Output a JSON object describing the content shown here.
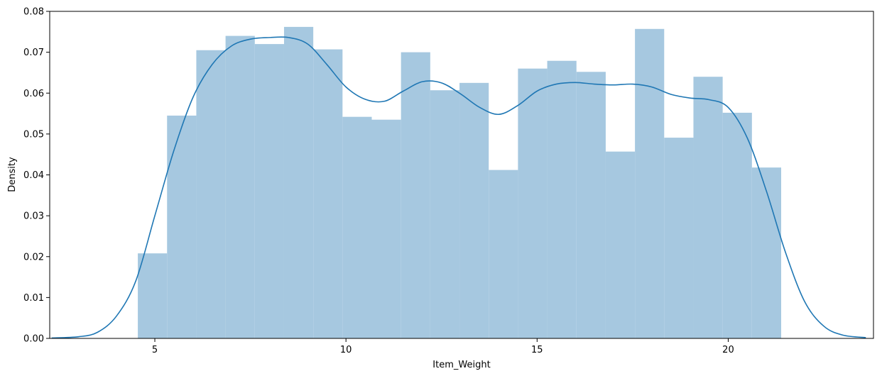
{
  "chart_data": {
    "type": "bar",
    "subtype": "histogram-with-kde",
    "xlabel": "Item_Weight",
    "ylabel": "Density",
    "xlim": [
      2.25,
      23.8
    ],
    "ylim": [
      0,
      0.08
    ],
    "x_ticks": [
      5,
      10,
      15,
      20
    ],
    "x_tick_labels": [
      "5",
      "10",
      "15",
      "20"
    ],
    "y_ticks": [
      0,
      0.01,
      0.02,
      0.03,
      0.04,
      0.05,
      0.06,
      0.07,
      0.08
    ],
    "y_tick_labels": [
      "0.00",
      "0.01",
      "0.02",
      "0.03",
      "0.04",
      "0.05",
      "0.06",
      "0.07",
      "0.08"
    ],
    "grid": false,
    "legend": "none",
    "bar_color": "#a6c8e0",
    "line_color": "#1f77b4",
    "histogram": {
      "bin_edges": [
        4.555,
        5.32,
        6.085,
        6.85,
        7.615,
        8.38,
        9.145,
        9.91,
        10.675,
        11.44,
        12.205,
        12.97,
        13.735,
        14.5,
        15.265,
        16.03,
        16.795,
        17.56,
        18.325,
        19.09,
        19.855,
        20.62,
        21.385
      ],
      "values": [
        0.0208,
        0.0545,
        0.0705,
        0.074,
        0.072,
        0.0762,
        0.0707,
        0.0542,
        0.0535,
        0.07,
        0.0607,
        0.0625,
        0.0412,
        0.066,
        0.0679,
        0.0652,
        0.0457,
        0.0757,
        0.0491,
        0.064,
        0.0552,
        0.0418
      ]
    },
    "kde": {
      "x": [
        2.3,
        3.0,
        3.5,
        4.0,
        4.5,
        5.0,
        5.5,
        6.0,
        6.5,
        7.0,
        7.5,
        8.0,
        8.5,
        9.0,
        9.5,
        10.0,
        10.5,
        11.0,
        11.5,
        12.0,
        12.5,
        13.0,
        13.5,
        14.0,
        14.5,
        15.0,
        15.5,
        16.0,
        16.5,
        17.0,
        17.5,
        18.0,
        18.5,
        19.0,
        19.5,
        20.0,
        20.5,
        21.0,
        21.5,
        22.0,
        22.5,
        23.0,
        23.6
      ],
      "y": [
        0.0001,
        0.0004,
        0.0015,
        0.0055,
        0.014,
        0.03,
        0.046,
        0.059,
        0.067,
        0.0715,
        0.0732,
        0.0736,
        0.0736,
        0.072,
        0.067,
        0.0615,
        0.0585,
        0.058,
        0.0605,
        0.0628,
        0.0625,
        0.0598,
        0.0565,
        0.0548,
        0.057,
        0.0605,
        0.0622,
        0.0626,
        0.0622,
        0.062,
        0.0622,
        0.0615,
        0.0597,
        0.0588,
        0.0584,
        0.0565,
        0.049,
        0.036,
        0.021,
        0.009,
        0.003,
        0.0008,
        0.0002
      ]
    }
  }
}
